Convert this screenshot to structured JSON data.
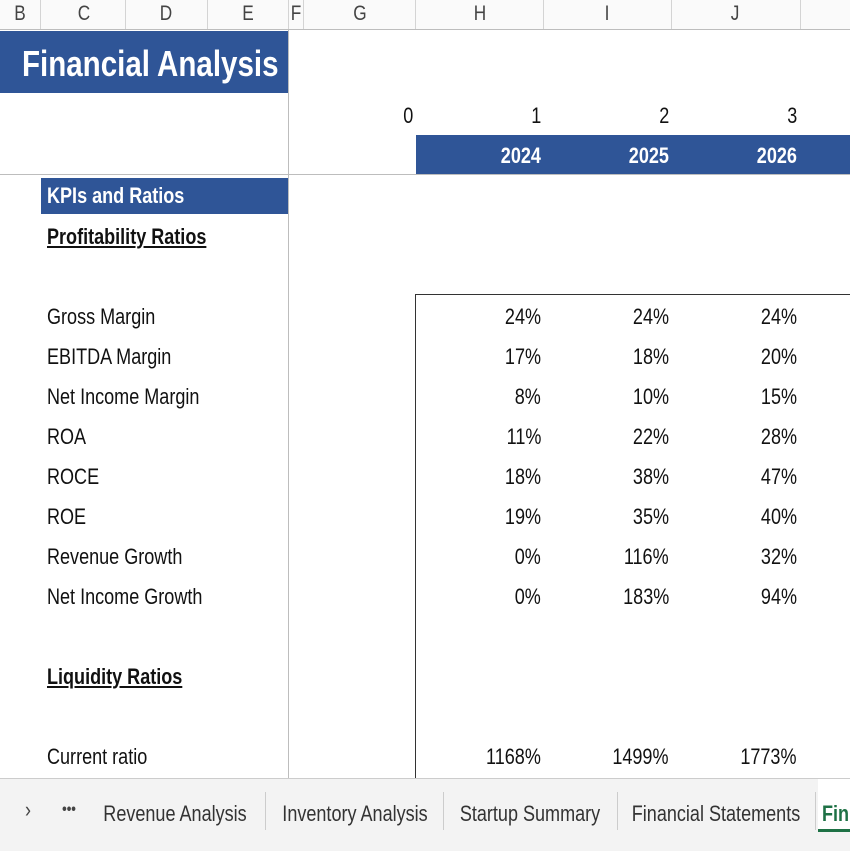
{
  "column_headers": [
    "B",
    "C",
    "D",
    "E",
    "F",
    "G",
    "H",
    "I",
    "J"
  ],
  "title": "Financial Analysis",
  "period_index": [
    0,
    1,
    2,
    3
  ],
  "years": [
    "2024",
    "2025",
    "2026"
  ],
  "section": "KPIs and Ratios",
  "groups": [
    {
      "heading": "Profitability Ratios",
      "rows": [
        {
          "label": "Gross Margin",
          "values": [
            "24%",
            "24%",
            "24%"
          ]
        },
        {
          "label": "EBITDA Margin",
          "values": [
            "17%",
            "18%",
            "20%"
          ]
        },
        {
          "label": "Net Income Margin",
          "values": [
            "8%",
            "10%",
            "15%"
          ]
        },
        {
          "label": "ROA",
          "values": [
            "11%",
            "22%",
            "28%"
          ]
        },
        {
          "label": "ROCE",
          "values": [
            "18%",
            "38%",
            "47%"
          ]
        },
        {
          "label": "ROE",
          "values": [
            "19%",
            "35%",
            "40%"
          ]
        },
        {
          "label": "Revenue Growth",
          "values": [
            "0%",
            "116%",
            "32%"
          ]
        },
        {
          "label": "Net Income Growth",
          "values": [
            "0%",
            "183%",
            "94%"
          ]
        }
      ]
    },
    {
      "heading": "Liquidity Ratios",
      "rows": [
        {
          "label": "Current ratio",
          "values": [
            "1168%",
            "1499%",
            "1773%"
          ]
        }
      ]
    }
  ],
  "tabs": [
    "Revenue Analysis",
    "Inventory Analysis",
    "Startup Summary",
    "Financial Statements",
    "Fin"
  ]
}
